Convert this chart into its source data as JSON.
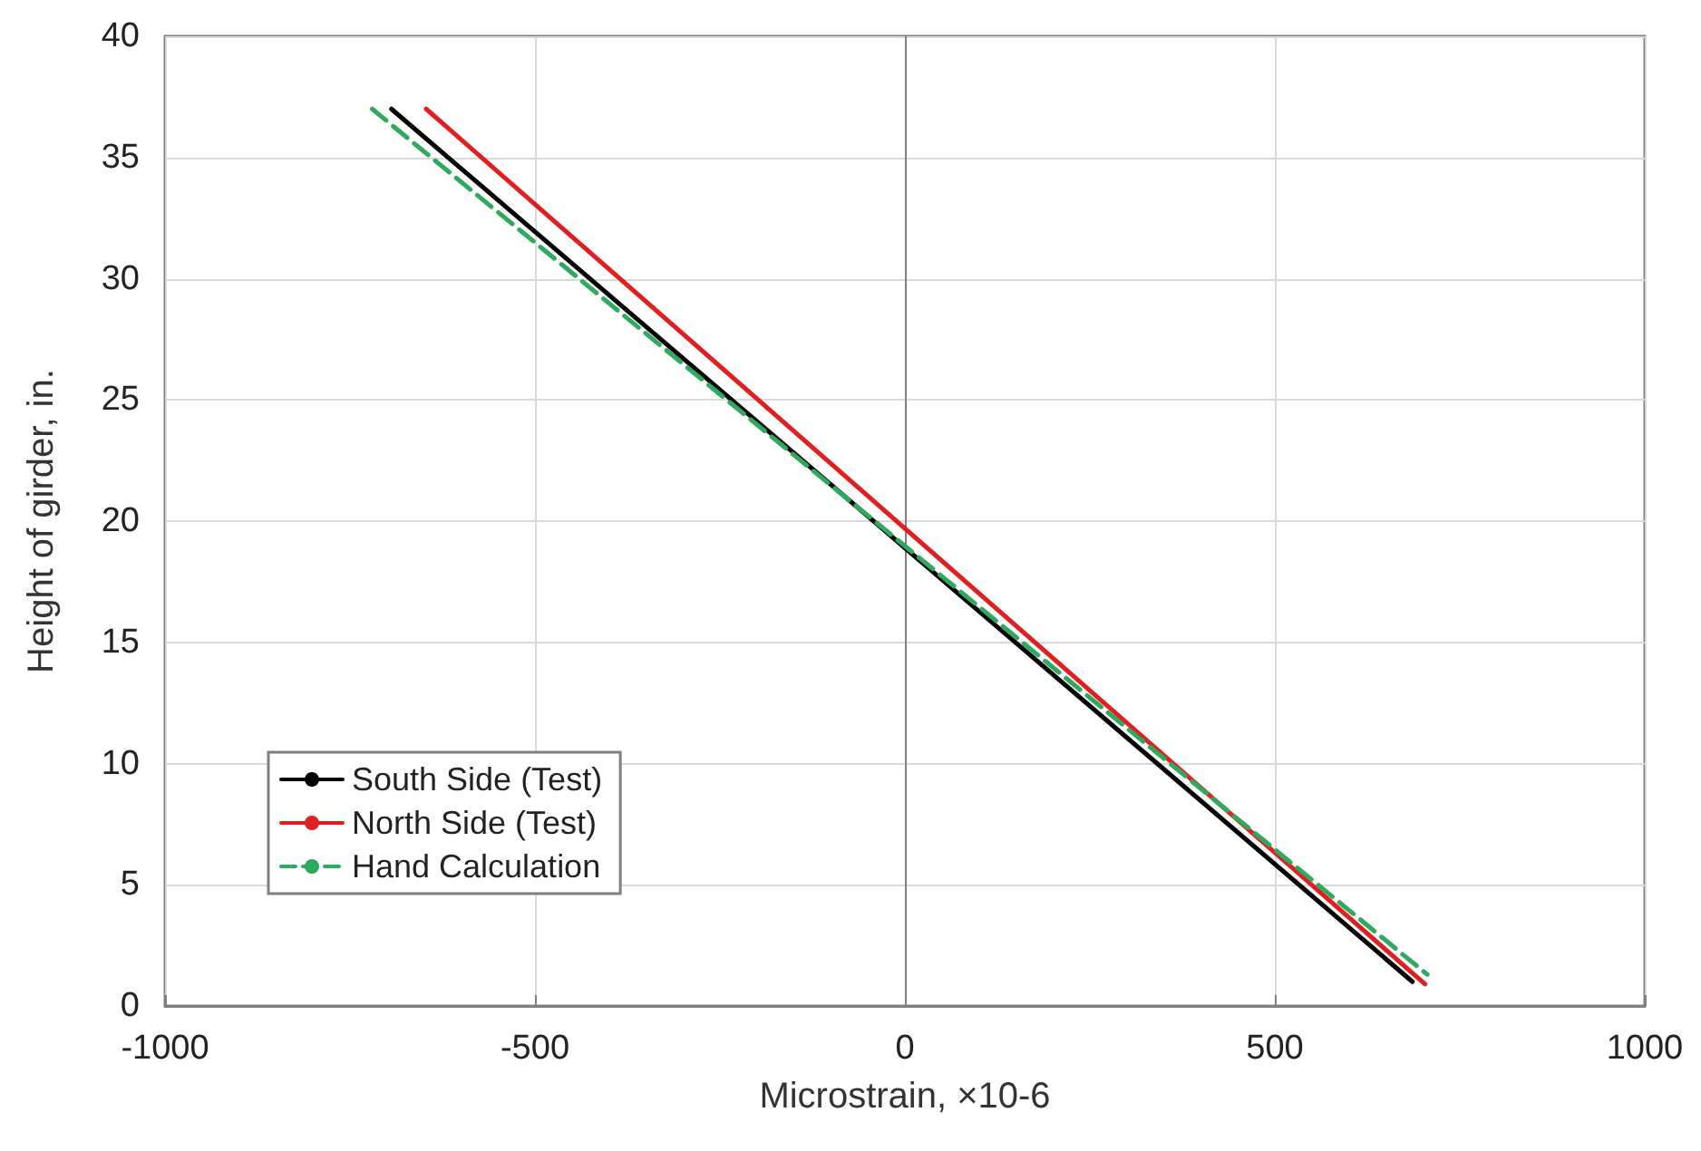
{
  "chart_data": {
    "type": "line",
    "xlabel": "Microstrain, ×10-6",
    "ylabel": "Height of girder, in.",
    "xlim": [
      -1000,
      1000
    ],
    "xticks": [
      -1000,
      -500,
      0,
      500,
      1000
    ],
    "ylim": [
      0,
      40
    ],
    "yticks": [
      0,
      5,
      10,
      15,
      20,
      25,
      30,
      35,
      40
    ],
    "grid": true,
    "legend": "bottom left",
    "marker": "none",
    "series": [
      {
        "name": "South Side (Test)",
        "color": "#000000",
        "x": [
          -694,
          686
        ],
        "values": [
          37.0,
          1.0
        ],
        "line_style": "solid"
      },
      {
        "name": "North Side (Test)",
        "color": "#e02020",
        "x": [
          -647,
          703
        ],
        "values": [
          37.0,
          0.9
        ],
        "line_style": "solid"
      },
      {
        "name": "Hand Calculation",
        "color": "#2eaa5e",
        "x": [
          -720,
          706
        ],
        "values": [
          37.0,
          1.3
        ],
        "line_style": "dashed"
      }
    ]
  }
}
